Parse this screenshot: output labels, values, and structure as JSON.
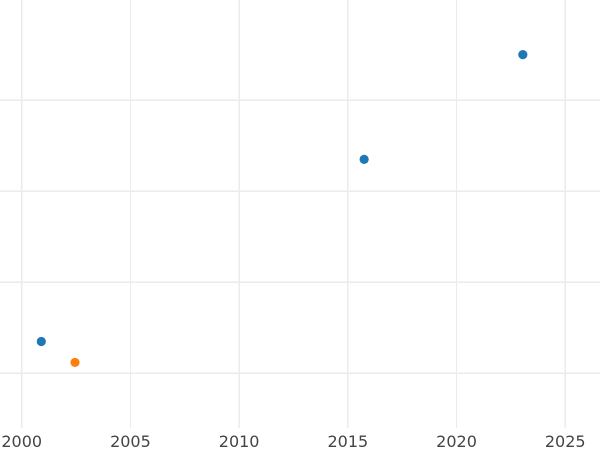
{
  "chart_data": {
    "type": "scatter",
    "title": "",
    "xlabel": "",
    "ylabel": "",
    "xlim": [
      1999.0,
      2026.6
    ],
    "ylim": [
      0.4,
      5.1
    ],
    "x_ticks": [
      2000,
      2005,
      2010,
      2015,
      2020,
      2025
    ],
    "x_tick_labels": [
      "2000",
      "2005",
      "2010",
      "2015",
      "2020",
      "2025"
    ],
    "y_gridlines": [
      1,
      2,
      3,
      4
    ],
    "grid": true,
    "legend": "none",
    "series": [
      {
        "color": "#1f77b4",
        "points": [
          {
            "x": 2000.9,
            "y": 1.35
          },
          {
            "x": 2015.75,
            "y": 3.35
          },
          {
            "x": 2023.05,
            "y": 4.5
          }
        ]
      },
      {
        "color": "#ff7f0e",
        "points": [
          {
            "x": 2002.45,
            "y": 1.12
          }
        ]
      }
    ]
  }
}
